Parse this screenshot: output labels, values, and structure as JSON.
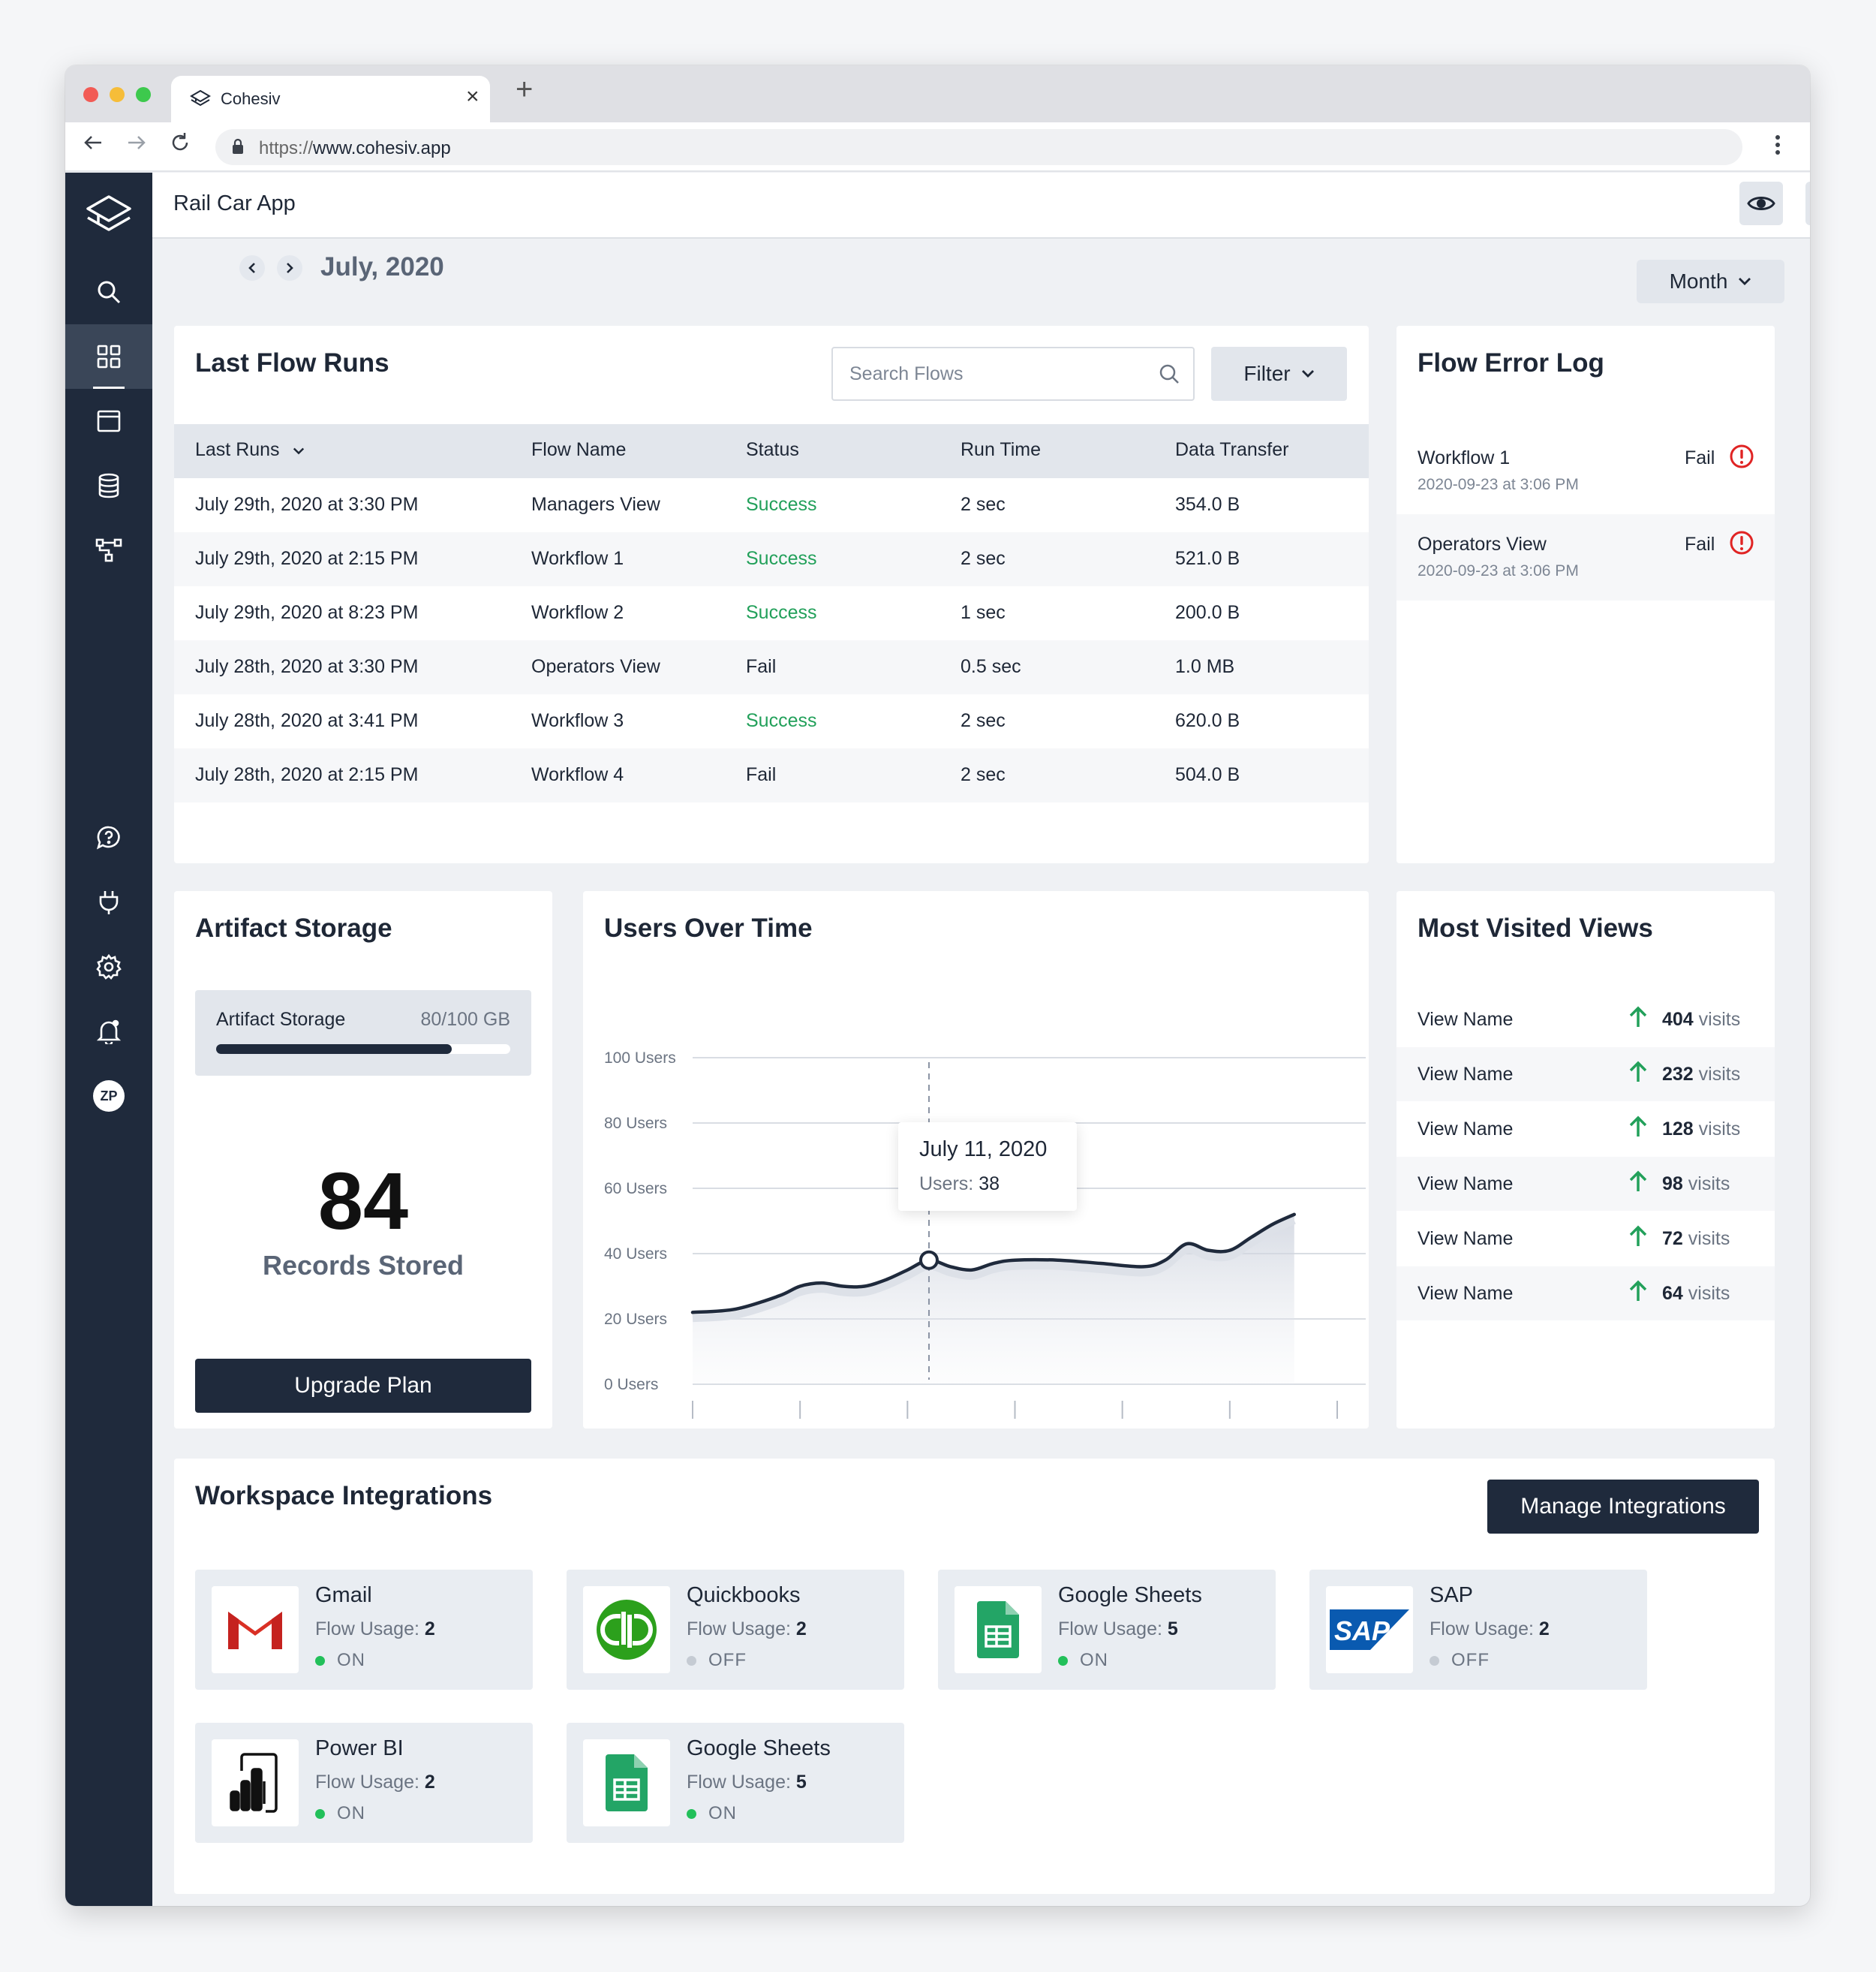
{
  "browser": {
    "tab_title": "Cohesiv",
    "url_prefix": "https://",
    "url_host": "www.cohesiv.app"
  },
  "app": {
    "title": "Rail Car App",
    "date_label": "July, 2020",
    "period_select": "Month"
  },
  "flow_runs": {
    "title": "Last Flow Runs",
    "search_placeholder": "Search Flows",
    "filter_label": "Filter",
    "columns": [
      "Last Runs",
      "Flow Name",
      "Status",
      "Run Time",
      "Data Transfer"
    ],
    "rows": [
      {
        "date": "July 29th, 2020 at 3:30 PM",
        "flow": "Managers View",
        "status": "Success",
        "runtime": "2 sec",
        "transfer": "354.0 B"
      },
      {
        "date": "July 29th, 2020 at 2:15 PM",
        "flow": "Workflow 1",
        "status": "Success",
        "runtime": "2 sec",
        "transfer": "521.0 B"
      },
      {
        "date": "July 29th, 2020 at  8:23 PM",
        "flow": "Workflow 2",
        "status": "Success",
        "runtime": "1 sec",
        "transfer": "200.0 B"
      },
      {
        "date": "July 28th, 2020 at 3:30 PM",
        "flow": "Operators View",
        "status": "Fail",
        "runtime": "0.5 sec",
        "transfer": "1.0 MB"
      },
      {
        "date": "July 28th, 2020 at 3:41 PM",
        "flow": "Workflow 3",
        "status": "Success",
        "runtime": "2 sec",
        "transfer": "620.0 B"
      },
      {
        "date": "July 28th, 2020 at 2:15 PM",
        "flow": "Workflow 4",
        "status": "Fail",
        "runtime": "2 sec",
        "transfer": "504.0 B"
      }
    ]
  },
  "error_log": {
    "title": "Flow Error Log",
    "items": [
      {
        "name": "Workflow 1",
        "date": "2020-09-23 at 3:06 PM",
        "status": "Fail"
      },
      {
        "name": "Operators View",
        "date": "2020-09-23 at 3:06 PM",
        "status": "Fail"
      }
    ]
  },
  "storage": {
    "title": "Artifact Storage",
    "bar_label": "Artifact Storage",
    "bar_value": "80/100 GB",
    "used_fraction": 0.8,
    "records": "84",
    "records_label": "Records Stored",
    "upgrade_label": "Upgrade Plan"
  },
  "users_chart": {
    "title": "Users Over Time",
    "tooltip_date": "July 11, 2020",
    "tooltip_label": "Users: ",
    "tooltip_value": "38"
  },
  "chart_data": {
    "type": "area",
    "title": "Users Over Time",
    "xlabel": "",
    "ylabel": "",
    "ylim": [
      0,
      100
    ],
    "xlim": [
      0,
      30
    ],
    "yticks": [
      "0 Users",
      "20 Users",
      "40 Users",
      "60 Users",
      "80 Users",
      "100 Users"
    ],
    "xticks": [
      "0",
      "5",
      "10",
      "15",
      "20",
      "25",
      "30"
    ],
    "grid": true,
    "series": [
      {
        "values": [
          {
            "x": 0,
            "y": 22
          },
          {
            "x": 2,
            "y": 23
          },
          {
            "x": 4,
            "y": 27
          },
          {
            "x": 5,
            "y": 30
          },
          {
            "x": 6,
            "y": 31
          },
          {
            "x": 7,
            "y": 30
          },
          {
            "x": 8,
            "y": 30
          },
          {
            "x": 9,
            "y": 32
          },
          {
            "x": 10,
            "y": 35
          },
          {
            "x": 11,
            "y": 38
          },
          {
            "x": 12,
            "y": 36
          },
          {
            "x": 13,
            "y": 35
          },
          {
            "x": 14,
            "y": 37
          },
          {
            "x": 15,
            "y": 38
          },
          {
            "x": 17,
            "y": 38
          },
          {
            "x": 19,
            "y": 37
          },
          {
            "x": 21,
            "y": 36
          },
          {
            "x": 22,
            "y": 38
          },
          {
            "x": 23,
            "y": 43
          },
          {
            "x": 24,
            "y": 41
          },
          {
            "x": 25,
            "y": 41
          },
          {
            "x": 26,
            "y": 45
          },
          {
            "x": 27,
            "y": 49
          },
          {
            "x": 28,
            "y": 52
          }
        ]
      }
    ],
    "highlight": {
      "x": 11,
      "y": 38
    }
  },
  "most_visited": {
    "title": "Most Visited Views",
    "unit": "visits",
    "items": [
      {
        "name": "View Name",
        "count": "404"
      },
      {
        "name": "View Name",
        "count": "232"
      },
      {
        "name": "View Name",
        "count": "128"
      },
      {
        "name": "View Name",
        "count": "98"
      },
      {
        "name": "View Name",
        "count": "72"
      },
      {
        "name": "View Name",
        "count": "64"
      }
    ]
  },
  "integrations": {
    "title": "Workspace Integrations",
    "manage_label": "Manage Integrations",
    "usage_label": "Flow Usage: ",
    "items": [
      {
        "name": "Gmail",
        "usage": "2",
        "status": "ON",
        "icon": "gmail-icon"
      },
      {
        "name": "Quickbooks",
        "usage": "2",
        "status": "OFF",
        "icon": "quickbooks-icon"
      },
      {
        "name": "Google Sheets",
        "usage": "5",
        "status": "ON",
        "icon": "google-sheets-icon"
      },
      {
        "name": "SAP",
        "usage": "2",
        "status": "OFF",
        "icon": "sap-icon",
        "logo_text": "SAP"
      },
      {
        "name": "Power BI",
        "usage": "2",
        "status": "ON",
        "icon": "power-bi-icon"
      },
      {
        "name": "Google Sheets",
        "usage": "5",
        "status": "ON",
        "icon": "google-sheets-icon"
      }
    ]
  },
  "colors": {
    "sidebar": "#1f2a3c",
    "success": "#22a05a",
    "fail_icon": "#e02424",
    "status_on": "#22c05a",
    "status_off": "#c5cbd3",
    "visits_arrow": "#22a05a"
  }
}
